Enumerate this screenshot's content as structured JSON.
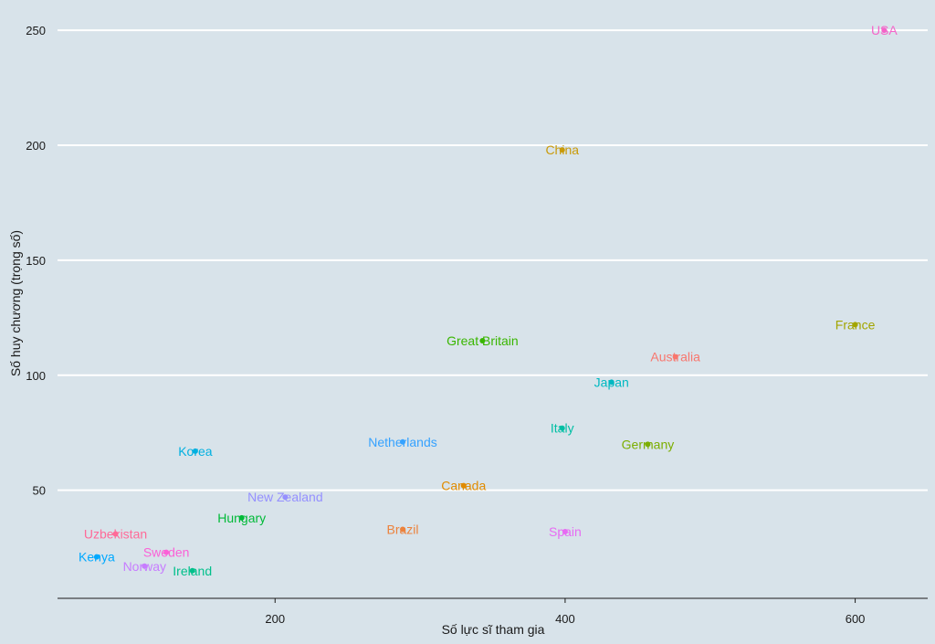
{
  "chart_data": {
    "type": "scatter",
    "title": "",
    "xlabel": "Số lực sĩ tham gia",
    "ylabel": "Số huy chương (trọng số)",
    "xlim": [
      50,
      650
    ],
    "ylim": [
      3,
      260
    ],
    "x_ticks": [
      200,
      400,
      600
    ],
    "y_ticks": [
      50,
      100,
      150,
      200,
      250
    ],
    "grid": "horizontal major lines",
    "legend": "none",
    "points": [
      {
        "label": "USA",
        "x": 620,
        "y": 250,
        "color": "#f564c9"
      },
      {
        "label": "China",
        "x": 398,
        "y": 198,
        "color": "#c99a09"
      },
      {
        "label": "France",
        "x": 600,
        "y": 122,
        "color": "#a3a500"
      },
      {
        "label": "Great Britain",
        "x": 343,
        "y": 115,
        "color": "#39b600"
      },
      {
        "label": "Australia",
        "x": 476,
        "y": 108,
        "color": "#f8766d"
      },
      {
        "label": "Japan",
        "x": 432,
        "y": 97,
        "color": "#00b9c2"
      },
      {
        "label": "Italy",
        "x": 398,
        "y": 77,
        "color": "#00bfa4"
      },
      {
        "label": "Netherlands",
        "x": 288,
        "y": 71,
        "color": "#35a2ff"
      },
      {
        "label": "Germany",
        "x": 457,
        "y": 70,
        "color": "#7cae00"
      },
      {
        "label": "Korea",
        "x": 145,
        "y": 67,
        "color": "#00b0e0"
      },
      {
        "label": "Canada",
        "x": 330,
        "y": 52,
        "color": "#e08b00"
      },
      {
        "label": "New Zealand",
        "x": 207,
        "y": 47,
        "color": "#9590ff"
      },
      {
        "label": "Hungary",
        "x": 177,
        "y": 38,
        "color": "#00ba38"
      },
      {
        "label": "Brazil",
        "x": 288,
        "y": 33,
        "color": "#ec823c"
      },
      {
        "label": "Spain",
        "x": 400,
        "y": 32,
        "color": "#e76bf3"
      },
      {
        "label": "Uzbekistan",
        "x": 90,
        "y": 31,
        "color": "#ff6a98"
      },
      {
        "label": "Sweden",
        "x": 125,
        "y": 23,
        "color": "#fb61d7"
      },
      {
        "label": "Kenya",
        "x": 77,
        "y": 21,
        "color": "#00a9ff"
      },
      {
        "label": "Norway",
        "x": 110,
        "y": 17,
        "color": "#c77cff"
      },
      {
        "label": "Ireland",
        "x": 143,
        "y": 15,
        "color": "#00c08b"
      }
    ]
  }
}
